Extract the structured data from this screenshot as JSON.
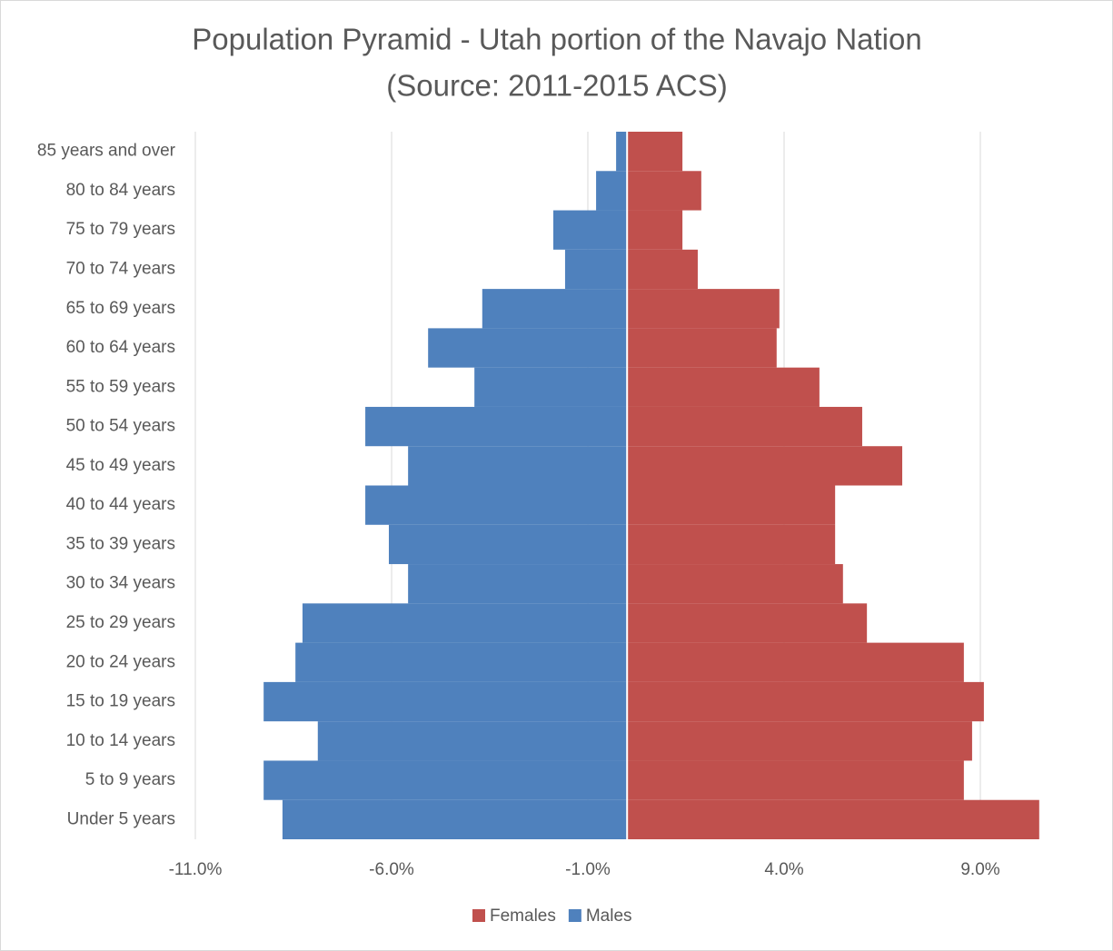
{
  "chart_data": {
    "type": "bar",
    "orientation": "horizontal",
    "title": "Population Pyramid - Utah portion of the Navajo Nation",
    "subtitle": "(Source: 2011-2015 ACS)",
    "categories": [
      "85 years and over",
      "80 to 84 years",
      "75 to 79 years",
      "70 to 74 years",
      "65 to 69 years",
      "60 to 64 years",
      "55 to 59 years",
      "50 to 54 years",
      "45 to 49 years",
      "40 to 44 years",
      "35 to 39 years",
      "30 to 34 years",
      "25 to 29 years",
      "20 to 24 years",
      "15 to 19 years",
      "10 to 14 years",
      "5 to 9 years",
      "Under 5 years"
    ],
    "series": [
      {
        "name": "Females",
        "color": "#c0504d",
        "values": [
          1.41,
          1.89,
          1.41,
          1.8,
          3.88,
          3.81,
          4.9,
          5.99,
          7.01,
          5.3,
          5.3,
          5.5,
          6.11,
          8.58,
          9.09,
          8.79,
          8.58,
          10.5
        ]
      },
      {
        "name": "Males",
        "color": "#4f81bd",
        "values": [
          -0.28,
          -0.79,
          -1.88,
          -1.58,
          -3.69,
          -5.07,
          -3.89,
          -6.67,
          -5.58,
          -6.67,
          -6.07,
          -5.58,
          -8.27,
          -8.45,
          -9.26,
          -7.88,
          -9.26,
          -8.78
        ]
      }
    ],
    "xlim": [
      -11,
      11
    ],
    "xticks": [
      {
        "value": -11,
        "label": "-11.0%"
      },
      {
        "value": -6,
        "label": "-6.0%"
      },
      {
        "value": -1,
        "label": "-1.0%"
      },
      {
        "value": 4,
        "label": "4.0%"
      },
      {
        "value": 9,
        "label": "9.0%"
      }
    ],
    "grid": true,
    "legend": "bottom"
  }
}
